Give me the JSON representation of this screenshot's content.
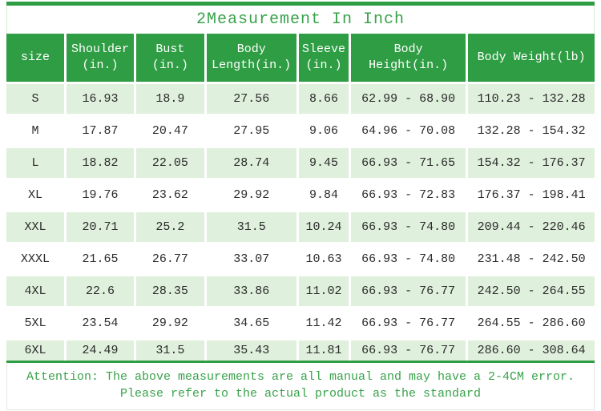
{
  "title": "2Measurement In Inch",
  "colors": {
    "header_green": "#2e9d43",
    "accent_text_green": "#39a24a",
    "row_stripe_green": "#dff0dc",
    "data_text": "#2b2b2b"
  },
  "header": {
    "cells": [
      {
        "id": "size",
        "lines": [
          "size"
        ]
      },
      {
        "id": "shoulder",
        "lines": [
          "Shoulder",
          "(in.)"
        ]
      },
      {
        "id": "bust",
        "lines": [
          "Bust",
          "(in.)"
        ]
      },
      {
        "id": "body-length",
        "lines": [
          "Body",
          "Length(in.)"
        ]
      },
      {
        "id": "sleeve",
        "lines": [
          "Sleeve",
          "(in.)"
        ]
      },
      {
        "id": "body-height",
        "lines": [
          "Body",
          "Height(in.)"
        ]
      },
      {
        "id": "body-weight",
        "lines": [
          "Body Weight(lb)"
        ]
      }
    ]
  },
  "chart_data": {
    "type": "table",
    "title": "2Measurement In Inch",
    "columns": [
      "size",
      "Shoulder (in.)",
      "Bust (in.)",
      "Body Length(in.)",
      "Sleeve (in.)",
      "Body Height(in.)",
      "Body Weight(lb)"
    ],
    "rows": [
      [
        "S",
        "16.93",
        "18.9",
        "27.56",
        "8.66",
        "62.99 - 68.90",
        "110.23 - 132.28"
      ],
      [
        "M",
        "17.87",
        "20.47",
        "27.95",
        "9.06",
        "64.96 - 70.08",
        "132.28 - 154.32"
      ],
      [
        "L",
        "18.82",
        "22.05",
        "28.74",
        "9.45",
        "66.93 - 71.65",
        "154.32 - 176.37"
      ],
      [
        "XL",
        "19.76",
        "23.62",
        "29.92",
        "9.84",
        "66.93 - 72.83",
        "176.37 - 198.41"
      ],
      [
        "XXL",
        "20.71",
        "25.2",
        "31.5",
        "10.24",
        "66.93 - 74.80",
        "209.44 - 220.46"
      ],
      [
        "XXXL",
        "21.65",
        "26.77",
        "33.07",
        "10.63",
        "66.93 - 74.80",
        "231.48 - 242.50"
      ],
      [
        "4XL",
        "22.6",
        "28.35",
        "33.86",
        "11.02",
        "66.93 - 76.77",
        "242.50 - 264.55"
      ],
      [
        "5XL",
        "23.54",
        "29.92",
        "34.65",
        "11.42",
        "66.93 - 76.77",
        "264.55 - 286.60"
      ],
      [
        "6XL",
        "24.49",
        "31.5",
        "35.43",
        "11.81",
        "66.93 - 76.77",
        "286.60 - 308.64"
      ]
    ]
  },
  "footer": {
    "line1": "Attention: The above measurements are all manual and may have a 2-4CM error.",
    "line2": "Please refer to the actual product as the standard"
  }
}
